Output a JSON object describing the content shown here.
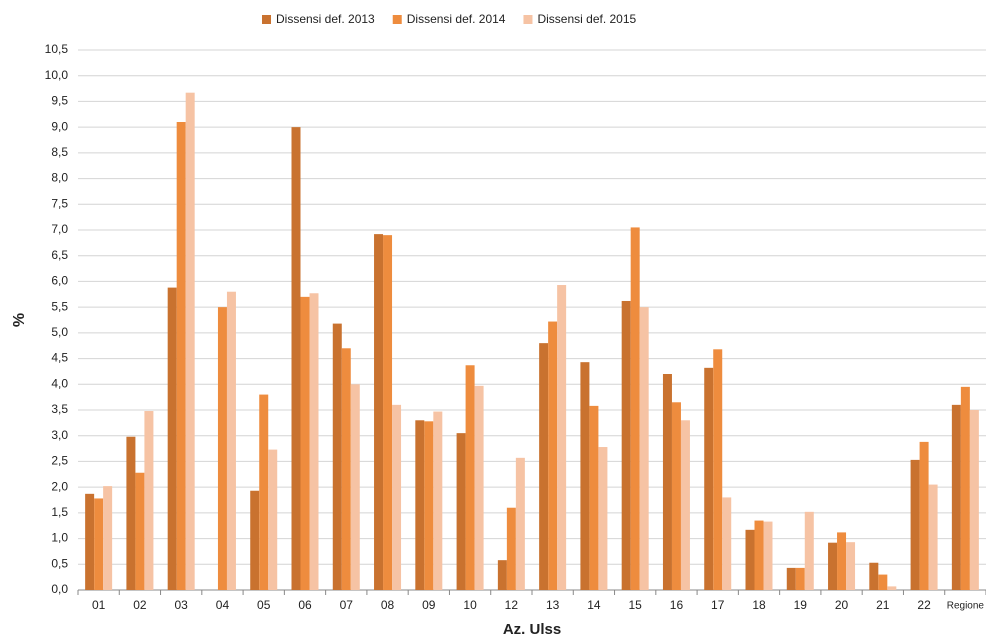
{
  "chart_data": {
    "type": "bar",
    "x_label": "Az. Ulss",
    "y_label": "%",
    "categories": [
      "01",
      "02",
      "03",
      "04",
      "05",
      "06",
      "07",
      "08",
      "09",
      "10",
      "12",
      "13",
      "14",
      "15",
      "16",
      "17",
      "18",
      "19",
      "20",
      "21",
      "22",
      "Regione"
    ],
    "series": [
      {
        "name": "Dissensi def. 2013",
        "color": "#c9722f",
        "values": [
          1.87,
          2.98,
          5.88,
          null,
          1.93,
          9.0,
          5.18,
          6.92,
          3.3,
          3.05,
          0.58,
          4.8,
          4.43,
          5.62,
          4.2,
          4.32,
          1.17,
          0.43,
          0.92,
          0.53,
          2.53,
          3.6
        ]
      },
      {
        "name": "Dissensi def. 2014",
        "color": "#ee8c3e",
        "values": [
          1.78,
          2.28,
          9.1,
          5.5,
          3.8,
          5.7,
          4.7,
          6.9,
          3.28,
          4.37,
          1.6,
          5.22,
          3.58,
          7.05,
          3.65,
          4.68,
          1.35,
          0.43,
          1.12,
          0.3,
          2.88,
          3.95
        ]
      },
      {
        "name": "Dissensi def. 2015",
        "color": "#f6c3a4",
        "values": [
          2.02,
          3.48,
          9.67,
          5.8,
          2.73,
          5.77,
          4.0,
          3.6,
          3.47,
          3.97,
          2.57,
          5.93,
          2.78,
          5.5,
          3.3,
          1.8,
          1.33,
          1.52,
          0.93,
          0.07,
          2.05,
          3.5
        ]
      }
    ],
    "ylim": [
      0,
      10.5
    ],
    "yticks": [
      {
        "value": 0,
        "label": "0,0"
      },
      {
        "value": 0.5,
        "label": "0,5"
      },
      {
        "value": 1,
        "label": "1,0"
      },
      {
        "value": 1.5,
        "label": "1,5"
      },
      {
        "value": 2,
        "label": "2,0"
      },
      {
        "value": 2.5,
        "label": "2,5"
      },
      {
        "value": 3,
        "label": "3,0"
      },
      {
        "value": 3.5,
        "label": "3,5"
      },
      {
        "value": 4,
        "label": "4,0"
      },
      {
        "value": 4.5,
        "label": "4,5"
      },
      {
        "value": 5,
        "label": "5,0"
      },
      {
        "value": 5.5,
        "label": "5,5"
      },
      {
        "value": 6,
        "label": "6,0"
      },
      {
        "value": 6.5,
        "label": "6,5"
      },
      {
        "value": 7,
        "label": "7,0"
      },
      {
        "value": 7.5,
        "label": "7,5"
      },
      {
        "value": 8,
        "label": "8,0"
      },
      {
        "value": 8.5,
        "label": "8,5"
      },
      {
        "value": 9,
        "label": "9,0"
      },
      {
        "value": 9.5,
        "label": "9,5"
      },
      {
        "value": 10,
        "label": "10,0"
      },
      {
        "value": 10.5,
        "label": "10,5"
      }
    ],
    "grid": true,
    "legend": "top"
  }
}
